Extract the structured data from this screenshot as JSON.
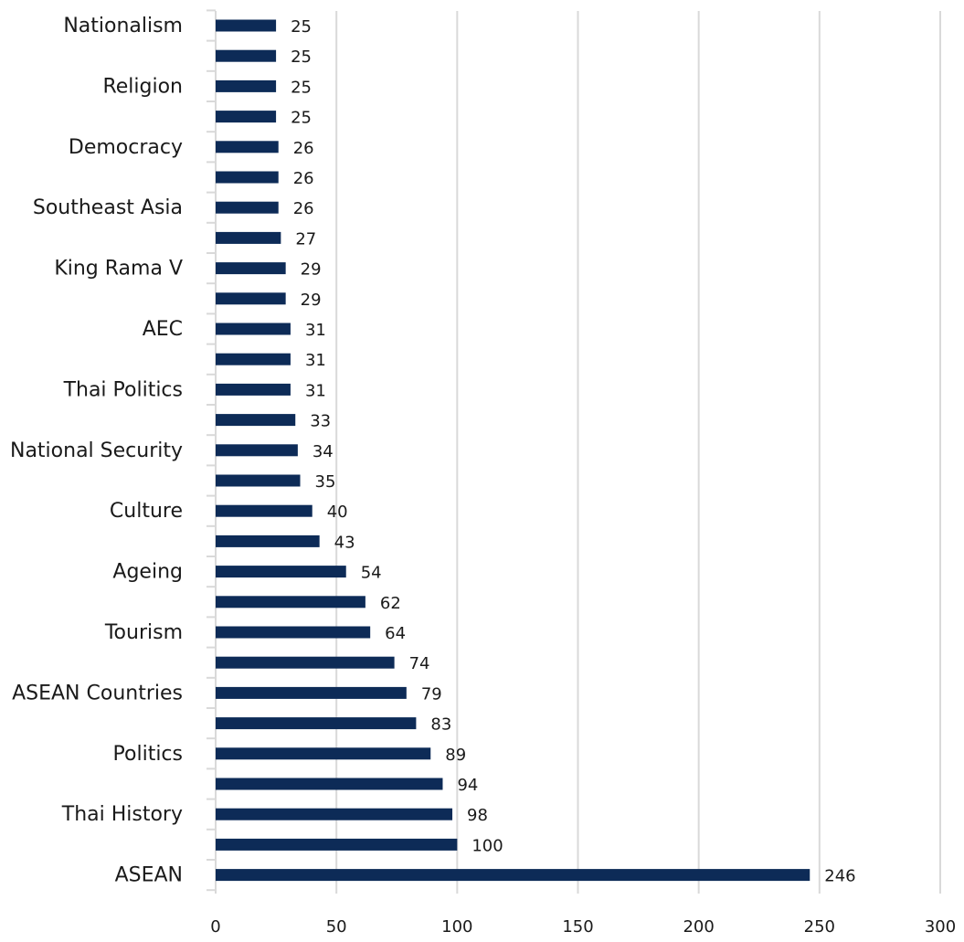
{
  "chart_data": {
    "type": "bar",
    "orientation": "horizontal",
    "title": "",
    "xlabel": "",
    "ylabel": "",
    "xlim": [
      0,
      300
    ],
    "x_ticks": [
      0,
      50,
      100,
      150,
      200,
      250,
      300
    ],
    "grid": "vertical",
    "bar_color": "#0d2b57",
    "gridline_color": "#d9d9d9",
    "categories": [
      "Nationalism",
      "",
      "Religion",
      "",
      "Democracy",
      "",
      "Southeast Asia",
      "",
      "King Rama V",
      "",
      "AEC",
      "",
      "Thai Politics",
      "",
      "National Security",
      "",
      "Culture",
      "",
      "Ageing",
      "",
      "Tourism",
      "",
      "ASEAN Countries",
      "",
      "Politics",
      "",
      "Thai History",
      "",
      "ASEAN"
    ],
    "values": [
      25,
      25,
      25,
      25,
      26,
      26,
      26,
      27,
      29,
      29,
      31,
      31,
      31,
      33,
      34,
      35,
      40,
      43,
      54,
      62,
      64,
      74,
      79,
      83,
      89,
      94,
      98,
      100,
      246
    ]
  }
}
